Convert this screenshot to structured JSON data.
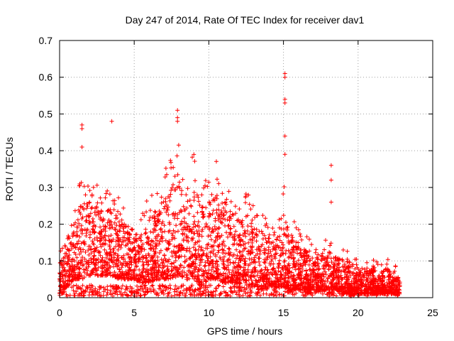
{
  "chart_data": {
    "type": "scatter",
    "title": "Day 247 of 2014, Rate Of TEC Index for receiver dav1",
    "xlabel": "GPS time / hours",
    "ylabel": "ROTI / TECUs",
    "xlim": [
      0,
      25
    ],
    "ylim": [
      0,
      0.7
    ],
    "xticks": [
      0,
      5,
      10,
      15,
      20,
      25
    ],
    "yticks": [
      0,
      0.1,
      0.2,
      0.3,
      0.4,
      0.5,
      0.6,
      0.7
    ],
    "xtick_labels": [
      "0",
      "5",
      "10",
      "15",
      "20",
      "25"
    ],
    "ytick_labels": [
      "0",
      "0.1",
      "0.2",
      "0.3",
      "0.4",
      "0.5",
      "0.6",
      "0.7"
    ],
    "grid": true,
    "marker": "+",
    "color": "#ff0000",
    "envelope": {
      "description": "approximate upper envelope of dense ROTI cloud (hours, TECUs)",
      "x": [
        0.0,
        0.5,
        1.0,
        1.5,
        2.0,
        2.5,
        3.0,
        3.5,
        4.0,
        4.5,
        5.0,
        5.5,
        6.0,
        6.5,
        7.0,
        7.5,
        8.0,
        8.5,
        9.0,
        9.5,
        10.0,
        10.5,
        11.0,
        11.5,
        12.0,
        12.5,
        13.0,
        13.5,
        14.0,
        14.5,
        15.0,
        15.5,
        16.0,
        16.5,
        17.0,
        17.5,
        18.0,
        18.5,
        19.0,
        19.5,
        20.0,
        20.5,
        21.0,
        21.5,
        22.0,
        22.5,
        22.8
      ],
      "upper": [
        0.12,
        0.16,
        0.22,
        0.33,
        0.32,
        0.3,
        0.28,
        0.3,
        0.27,
        0.24,
        0.22,
        0.21,
        0.28,
        0.3,
        0.33,
        0.38,
        0.4,
        0.35,
        0.38,
        0.32,
        0.3,
        0.36,
        0.34,
        0.3,
        0.26,
        0.28,
        0.24,
        0.22,
        0.2,
        0.19,
        0.3,
        0.22,
        0.18,
        0.16,
        0.15,
        0.15,
        0.16,
        0.14,
        0.13,
        0.12,
        0.1,
        0.09,
        0.1,
        0.09,
        0.1,
        0.09,
        0.06
      ],
      "lower": [
        0.01,
        0.03,
        0.05,
        0.05,
        0.06,
        0.06,
        0.06,
        0.06,
        0.05,
        0.05,
        0.05,
        0.04,
        0.04,
        0.05,
        0.05,
        0.05,
        0.06,
        0.05,
        0.05,
        0.03,
        0.05,
        0.05,
        0.04,
        0.04,
        0.04,
        0.03,
        0.03,
        0.03,
        0.03,
        0.03,
        0.03,
        0.02,
        0.02,
        0.02,
        0.02,
        0.02,
        0.02,
        0.02,
        0.01,
        0.01,
        0.01,
        0.01,
        0.01,
        0.01,
        0.01,
        0.01,
        0.01
      ]
    },
    "notable_points": [
      {
        "x": 1.5,
        "y": 0.47
      },
      {
        "x": 1.5,
        "y": 0.46
      },
      {
        "x": 1.5,
        "y": 0.41
      },
      {
        "x": 3.5,
        "y": 0.48
      },
      {
        "x": 7.9,
        "y": 0.51
      },
      {
        "x": 7.9,
        "y": 0.49
      },
      {
        "x": 7.9,
        "y": 0.48
      },
      {
        "x": 15.1,
        "y": 0.61
      },
      {
        "x": 15.1,
        "y": 0.6
      },
      {
        "x": 15.1,
        "y": 0.54
      },
      {
        "x": 15.1,
        "y": 0.53
      },
      {
        "x": 15.1,
        "y": 0.44
      },
      {
        "x": 15.1,
        "y": 0.39
      },
      {
        "x": 18.2,
        "y": 0.36
      },
      {
        "x": 18.2,
        "y": 0.32
      },
      {
        "x": 18.2,
        "y": 0.26
      }
    ]
  }
}
